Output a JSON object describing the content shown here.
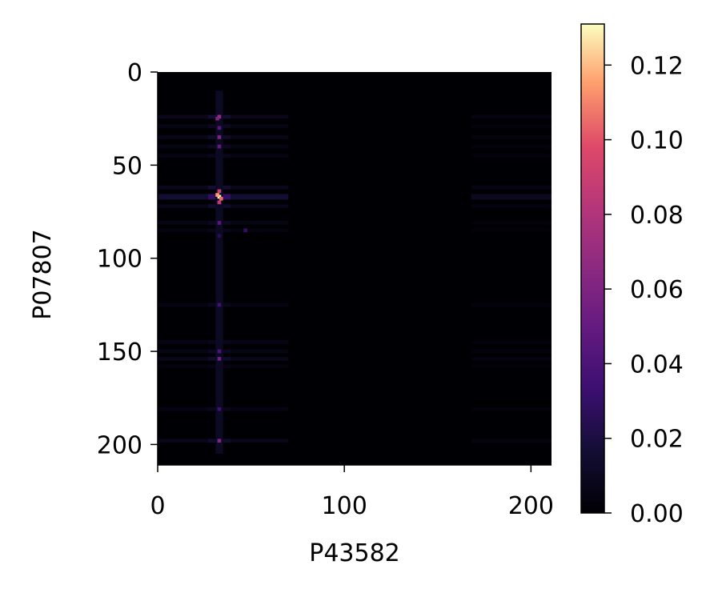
{
  "chart_data": {
    "type": "heatmap",
    "title": "",
    "xlabel": "P43582",
    "ylabel": "P07807",
    "x_range": [
      0,
      211
    ],
    "y_range": [
      0,
      211
    ],
    "y_axis_inverted": true,
    "x_ticks": [
      0,
      100,
      200
    ],
    "y_ticks": [
      0,
      50,
      100,
      150,
      200
    ],
    "colormap": "magma",
    "colorbar": {
      "range": [
        0,
        0.131
      ],
      "ticks": [
        "0.00",
        "0.02",
        "0.04",
        "0.06",
        "0.08",
        "0.10",
        "0.12"
      ]
    },
    "hotspot_columns": [
      {
        "x_center": 33,
        "width": 3,
        "strength": 1.0
      }
    ],
    "hotspot_rows": [
      {
        "y_center": 24,
        "width": 2,
        "strength": 0.55
      },
      {
        "y_center": 29,
        "width": 2,
        "strength": 0.35
      },
      {
        "y_center": 35,
        "width": 2,
        "strength": 0.45
      },
      {
        "y_center": 40,
        "width": 2,
        "strength": 0.35
      },
      {
        "y_center": 45,
        "width": 2,
        "strength": 0.3
      },
      {
        "y_center": 62,
        "width": 2,
        "strength": 0.55
      },
      {
        "y_center": 67,
        "width": 3,
        "strength": 1.0
      },
      {
        "y_center": 72,
        "width": 2,
        "strength": 0.45
      },
      {
        "y_center": 81,
        "width": 2,
        "strength": 0.35
      },
      {
        "y_center": 85,
        "width": 2,
        "strength": 0.25
      },
      {
        "y_center": 125,
        "width": 2,
        "strength": 0.3
      },
      {
        "y_center": 145,
        "width": 2,
        "strength": 0.3
      },
      {
        "y_center": 150,
        "width": 2,
        "strength": 0.35
      },
      {
        "y_center": 154,
        "width": 2,
        "strength": 0.45
      },
      {
        "y_center": 158,
        "width": 2,
        "strength": 0.2
      },
      {
        "y_center": 181,
        "width": 2,
        "strength": 0.3
      },
      {
        "y_center": 198,
        "width": 2,
        "strength": 0.45
      }
    ],
    "peak_cells": [
      {
        "x": 33,
        "y": 67,
        "value": 0.131
      },
      {
        "x": 32,
        "y": 66,
        "value": 0.115
      },
      {
        "x": 34,
        "y": 68,
        "value": 0.105
      },
      {
        "x": 33,
        "y": 64,
        "value": 0.09
      },
      {
        "x": 33,
        "y": 70,
        "value": 0.085
      },
      {
        "x": 33,
        "y": 24,
        "value": 0.07
      },
      {
        "x": 32,
        "y": 25,
        "value": 0.06
      },
      {
        "x": 33,
        "y": 35,
        "value": 0.06
      },
      {
        "x": 33,
        "y": 40,
        "value": 0.05
      },
      {
        "x": 33,
        "y": 30,
        "value": 0.045
      },
      {
        "x": 33,
        "y": 198,
        "value": 0.06
      },
      {
        "x": 33,
        "y": 154,
        "value": 0.055
      },
      {
        "x": 33,
        "y": 150,
        "value": 0.04
      },
      {
        "x": 33,
        "y": 125,
        "value": 0.035
      },
      {
        "x": 33,
        "y": 181,
        "value": 0.035
      },
      {
        "x": 33,
        "y": 81,
        "value": 0.045
      },
      {
        "x": 47,
        "y": 85,
        "value": 0.03
      },
      {
        "x": 33,
        "y": 88,
        "value": 0.025
      }
    ]
  }
}
